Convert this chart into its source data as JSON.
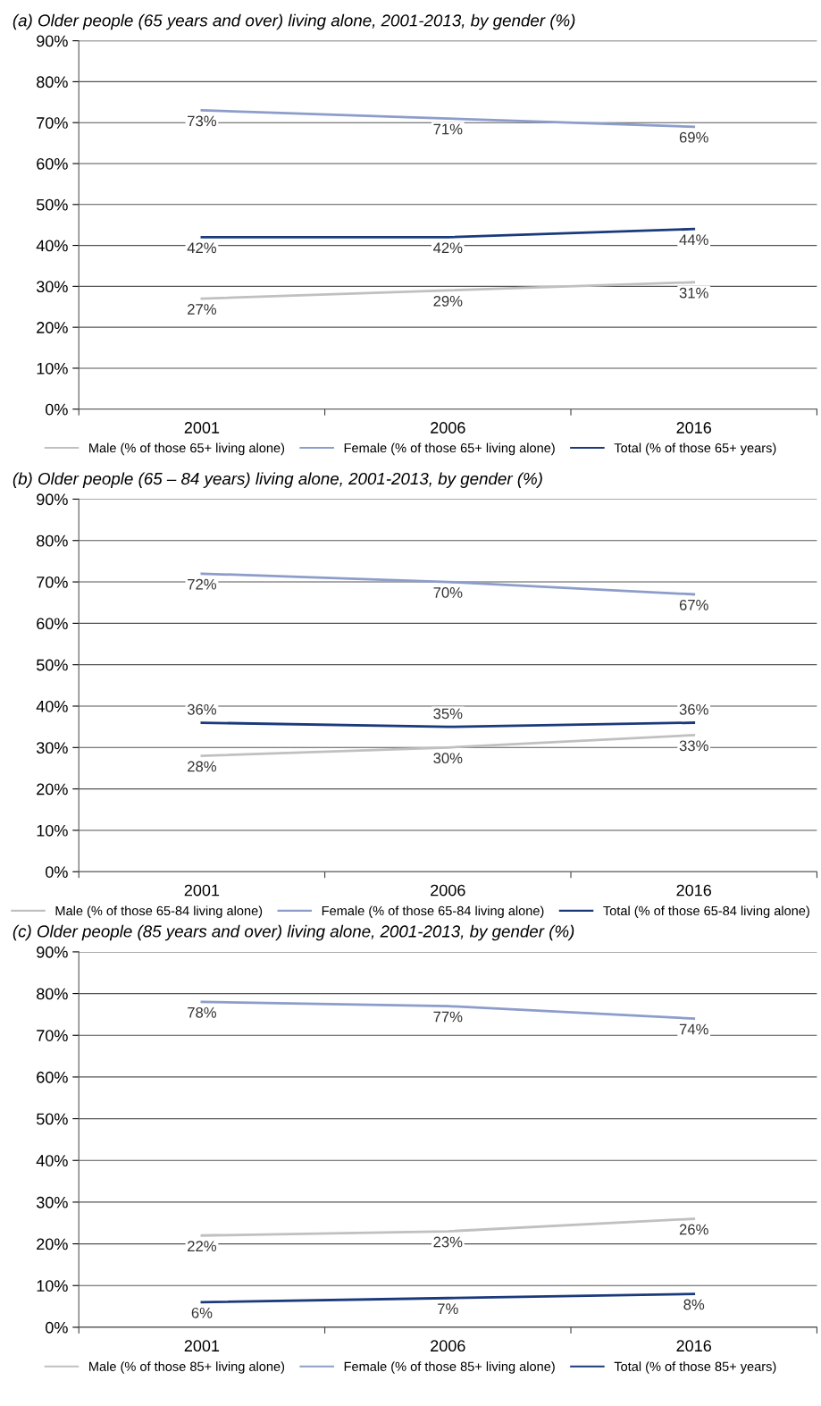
{
  "chart_data": [
    {
      "type": "line",
      "title": "(a) Older people (65 years and over) living alone, 2001-2013, by gender (%)",
      "categories": [
        "2001",
        "2006",
        "2016"
      ],
      "series": [
        {
          "name": "Male (% of those 65+ living alone)",
          "color": "#c0c0c0",
          "values": [
            27,
            29,
            31
          ],
          "value_labels": [
            "27%",
            "29%",
            "31%"
          ]
        },
        {
          "name": "Female (% of those 65+ living alone)",
          "color": "#8d9dcb",
          "values": [
            73,
            71,
            69
          ],
          "value_labels": [
            "73%",
            "71%",
            "69%"
          ]
        },
        {
          "name": "Total (% of those 65+ years)",
          "color": "#1b3a7c",
          "values": [
            42,
            42,
            44
          ],
          "value_labels": [
            "42%",
            "42%",
            "44%"
          ]
        }
      ],
      "ylim": [
        0,
        90
      ],
      "yticks": [
        {
          "value": 0,
          "label": "0%"
        },
        {
          "value": 10,
          "label": "10%"
        },
        {
          "value": 20,
          "label": "20%"
        },
        {
          "value": 30,
          "label": "30%"
        },
        {
          "value": 40,
          "label": "40%"
        },
        {
          "value": 50,
          "label": "50%"
        },
        {
          "value": 60,
          "label": "60%"
        },
        {
          "value": 70,
          "label": "70%"
        },
        {
          "value": 80,
          "label": "80%"
        },
        {
          "value": 90,
          "label": "90%"
        }
      ],
      "grid": "y",
      "legend": "bottom",
      "marker": "none",
      "line_style": "solid"
    },
    {
      "type": "line",
      "title": "(b) Older people (65 – 84 years) living alone, 2001-2013, by gender (%)",
      "categories": [
        "2001",
        "2006",
        "2016"
      ],
      "series": [
        {
          "name": "Male (% of those 65-84 living alone)",
          "color": "#c0c0c0",
          "values": [
            28,
            30,
            33
          ],
          "value_labels": [
            "28%",
            "30%",
            "33%"
          ]
        },
        {
          "name": "Female (% of those 65-84 living alone)",
          "color": "#8d9dcb",
          "values": [
            72,
            70,
            67
          ],
          "value_labels": [
            "72%",
            "70%",
            "67%"
          ]
        },
        {
          "name": "Total (% of those 65-84 living alone)",
          "color": "#1b3a7c",
          "values": [
            36,
            35,
            36
          ],
          "value_labels": [
            "36%",
            "35%",
            "36%"
          ]
        }
      ],
      "ylim": [
        0,
        90
      ],
      "yticks": [
        {
          "value": 0,
          "label": "0%"
        },
        {
          "value": 10,
          "label": "10%"
        },
        {
          "value": 20,
          "label": "20%"
        },
        {
          "value": 30,
          "label": "30%"
        },
        {
          "value": 40,
          "label": "40%"
        },
        {
          "value": 50,
          "label": "50%"
        },
        {
          "value": 60,
          "label": "60%"
        },
        {
          "value": 70,
          "label": "70%"
        },
        {
          "value": 80,
          "label": "80%"
        },
        {
          "value": 90,
          "label": "90%"
        }
      ],
      "grid": "y",
      "legend": "bottom",
      "marker": "none",
      "line_style": "solid"
    },
    {
      "type": "line",
      "title": "(c) Older people (85 years and over) living alone, 2001-2013, by gender (%)",
      "categories": [
        "2001",
        "2006",
        "2016"
      ],
      "series": [
        {
          "name": "Male (% of those 85+ living alone)",
          "color": "#c0c0c0",
          "values": [
            22,
            23,
            26
          ],
          "value_labels": [
            "22%",
            "23%",
            "26%"
          ]
        },
        {
          "name": "Female (% of those 85+ living alone)",
          "color": "#8d9dcb",
          "values": [
            78,
            77,
            74
          ],
          "value_labels": [
            "78%",
            "77%",
            "74%"
          ]
        },
        {
          "name": "Total (% of those 85+ years)",
          "color": "#1b3a7c",
          "values": [
            6,
            7,
            8
          ],
          "value_labels": [
            "6%",
            "7%",
            "8%"
          ]
        }
      ],
      "ylim": [
        0,
        90
      ],
      "yticks": [
        {
          "value": 0,
          "label": "0%"
        },
        {
          "value": 10,
          "label": "10%"
        },
        {
          "value": 20,
          "label": "20%"
        },
        {
          "value": 30,
          "label": "30%"
        },
        {
          "value": 40,
          "label": "40%"
        },
        {
          "value": 50,
          "label": "50%"
        },
        {
          "value": 60,
          "label": "60%"
        },
        {
          "value": 70,
          "label": "70%"
        },
        {
          "value": 80,
          "label": "80%"
        },
        {
          "value": 90,
          "label": "90%"
        }
      ],
      "grid": "y",
      "legend": "bottom",
      "marker": "none",
      "line_style": "solid"
    }
  ]
}
